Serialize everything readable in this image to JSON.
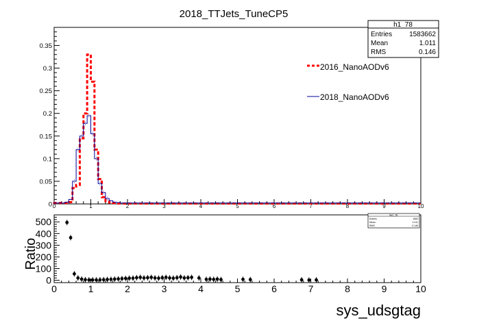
{
  "title": "2018_TTJets_TuneCP5",
  "stats": {
    "name": "h1_78",
    "rows": [
      {
        "label": "Entries",
        "value": "1583662"
      },
      {
        "label": "Mean",
        "value": "1.011"
      },
      {
        "label": "RMS",
        "value": "0.146"
      }
    ]
  },
  "legend": [
    "2016_NanoAODv6",
    "2018_NanoAODv6"
  ],
  "ratio_stats": {
    "name": "hw1_78",
    "rows": [
      {
        "label": "Entries",
        "value": "1583"
      },
      {
        "label": "Mean",
        "value": "1.011"
      },
      {
        "label": "RMS",
        "value": "0.146"
      }
    ]
  },
  "colors": {
    "series_2016": "#ff0000",
    "series_2018": "#000099",
    "ratio": "#000000"
  },
  "chart_data": [
    {
      "type": "line",
      "title": "2018_TTJets_TuneCP5",
      "xlabel": "",
      "ylabel": "",
      "xlim": [
        0,
        10
      ],
      "ylim": [
        0,
        0.39
      ],
      "xticks": [
        "0",
        "1",
        "2",
        "3",
        "4",
        "5",
        "6",
        "7",
        "8",
        "9",
        "10"
      ],
      "yticks": [
        "0",
        "0.05",
        "0.1",
        "0.15",
        "0.2",
        "0.25",
        "0.3",
        "0.35"
      ],
      "bin_edges_x": [
        0,
        0.1,
        0.2,
        0.3,
        0.4,
        0.5,
        0.6,
        0.7,
        0.8,
        0.9,
        1.0,
        1.1,
        1.2,
        1.3,
        1.4,
        1.5,
        1.6,
        1.7,
        1.8,
        1.9,
        2.0
      ],
      "series": [
        {
          "name": "2016_NanoAODv6",
          "style": "dashed",
          "values": [
            0.002,
            0.002,
            0.002,
            0.002,
            0.004,
            0.035,
            0.042,
            0.145,
            0.2,
            0.33,
            0.27,
            0.12,
            0.055,
            0.015,
            0.006,
            0.003,
            0.002,
            0.001,
            0.001,
            0.001
          ],
          "tail": 0.001
        },
        {
          "name": "2018_NanoAODv6",
          "style": "solid",
          "values": [
            0.002,
            0.002,
            0.002,
            0.004,
            0.01,
            0.05,
            0.12,
            0.15,
            0.178,
            0.195,
            0.155,
            0.1,
            0.045,
            0.025,
            0.012,
            0.007,
            0.004,
            0.003,
            0.002,
            0.002
          ],
          "tail": 0.002
        }
      ]
    },
    {
      "type": "scatter",
      "xlabel": "sys_udsgtag",
      "ylabel": "Ratio",
      "xlim": [
        0,
        10
      ],
      "ylim": [
        -20,
        560
      ],
      "xticks": [
        "0",
        "1",
        "2",
        "3",
        "4",
        "5",
        "6",
        "7",
        "8",
        "9",
        "10"
      ],
      "yticks": [
        "0",
        "100",
        "200",
        "300",
        "400",
        "500"
      ],
      "x": [
        0.35,
        0.45,
        0.55,
        0.65,
        0.75,
        0.85,
        0.95,
        1.05,
        1.15,
        1.25,
        1.35,
        1.45,
        1.55,
        1.65,
        1.75,
        1.85,
        1.95,
        2.05,
        2.15,
        2.25,
        2.35,
        2.45,
        2.55,
        2.65,
        2.75,
        2.85,
        2.95,
        3.05,
        3.15,
        3.25,
        3.35,
        3.45,
        3.55,
        3.65,
        3.75,
        3.95,
        4.15,
        4.25,
        4.35,
        4.45,
        4.55,
        5.15,
        5.35,
        6.75,
        6.95,
        7.15
      ],
      "y": [
        495,
        365,
        55,
        20,
        10,
        5,
        3,
        3,
        3,
        4,
        5,
        7,
        8,
        10,
        12,
        14,
        16,
        18,
        18,
        22,
        25,
        20,
        22,
        25,
        20,
        18,
        22,
        25,
        20,
        18,
        22,
        28,
        20,
        22,
        25,
        20,
        8,
        10,
        8,
        10,
        6,
        8,
        6,
        4,
        2,
        3
      ]
    }
  ]
}
